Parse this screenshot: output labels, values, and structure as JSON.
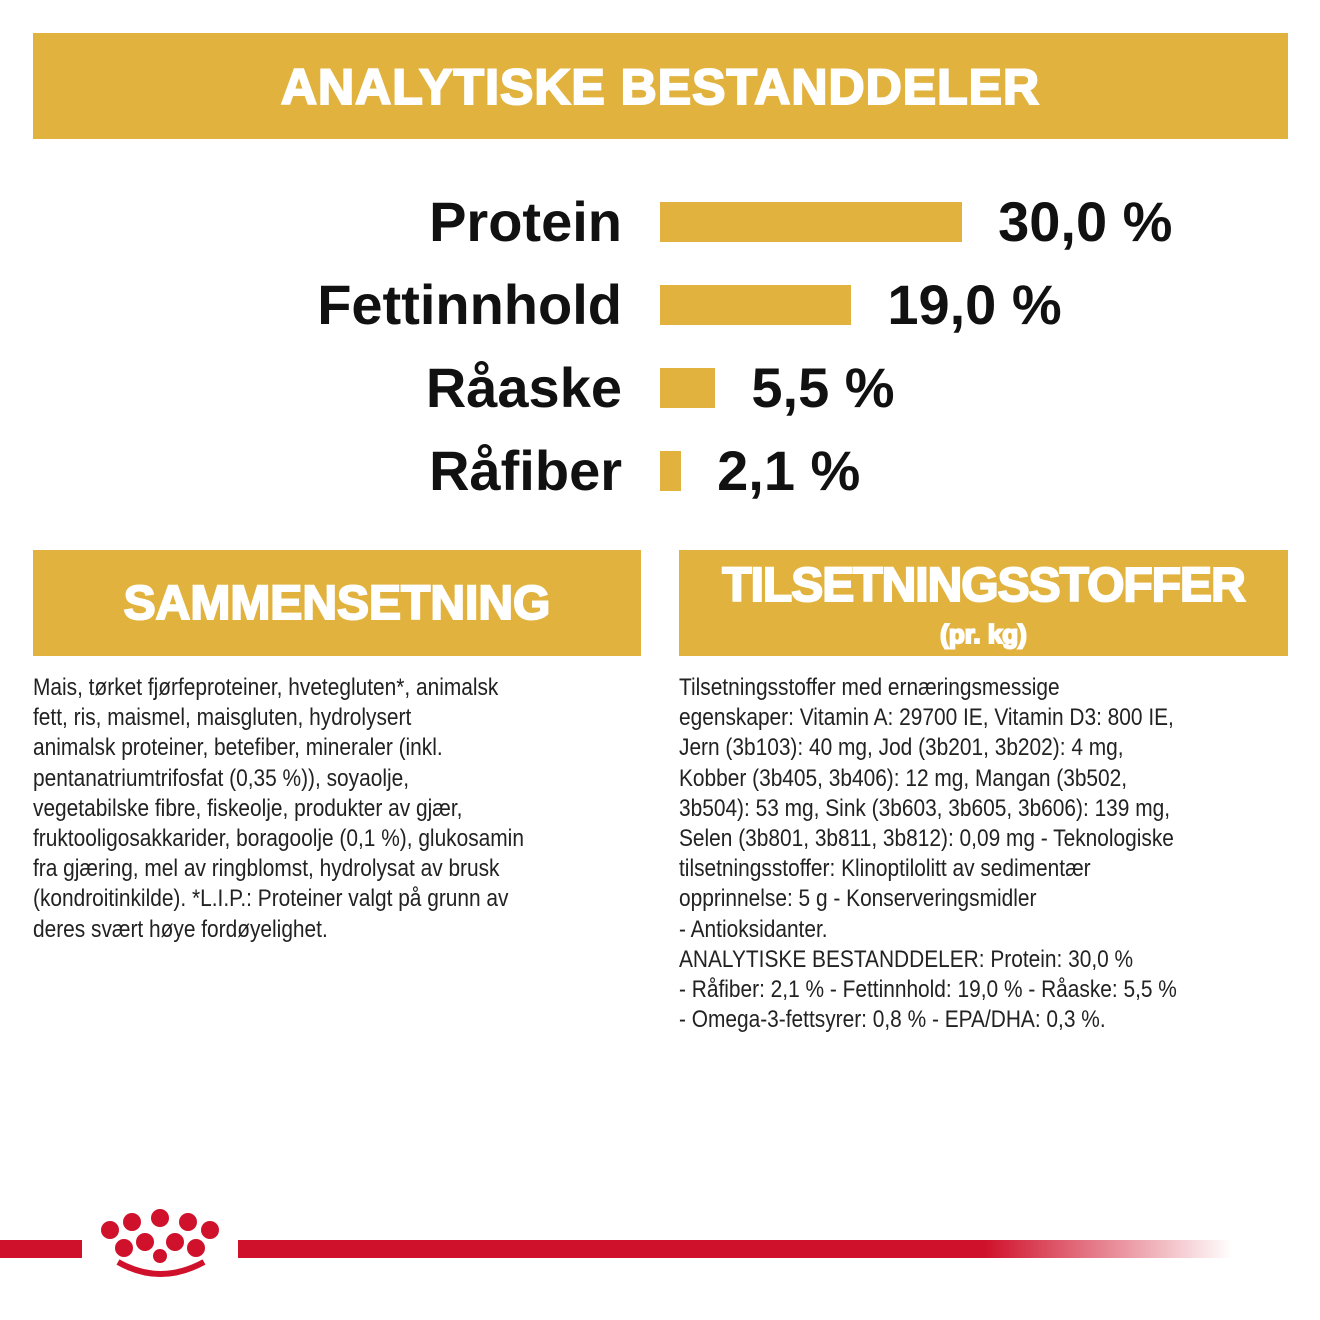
{
  "header": {
    "title": "ANALYTISKE BESTANDDELER"
  },
  "chart_data": {
    "type": "bar",
    "categories": [
      "Protein",
      "Fettinnhold",
      "Råaske",
      "Råfiber"
    ],
    "values": [
      30.0,
      19.0,
      5.5,
      2.1
    ],
    "value_labels": [
      "30,0 %",
      "19,0 %",
      "5,5 %",
      "2,1 %"
    ],
    "color": "#e1b23d"
  },
  "composition": {
    "title": "SAMMENSETNING",
    "lines": [
      "Mais, tørket fjørfeproteiner, hvetegluten*, animalsk",
      "fett, ris, maismel, maisgluten, hydrolysert",
      "animalsk proteiner, betefiber, mineraler (inkl.",
      "pentanatriumtrifosfat (0,35 %)), soyaolje,",
      "vegetabilske fibre, fiskeolje, produkter av gjær,",
      "fruktooligosakkarider, boragoolje (0,1 %), glukosamin",
      "fra gjæring, mel av ringblomst, hydrolysat av brusk",
      "(kondroitinkilde). *L.I.P.: Proteiner valgt på grunn av",
      "deres svært høye fordøyelighet."
    ]
  },
  "additives": {
    "title": "TILSETNINGSSTOFFER",
    "subtitle": "(pr. kg)",
    "lines": [
      "Tilsetningsstoffer med ernæringsmessige",
      "egenskaper: Vitamin A: 29700 IE, Vitamin D3: 800 IE,",
      "Jern (3b103): 40 mg, Jod (3b201, 3b202): 4 mg,",
      "Kobber (3b405, 3b406): 12 mg, Mangan (3b502,",
      "3b504): 53 mg, Sink (3b603, 3b605, 3b606): 139 mg,",
      "Selen (3b801, 3b811, 3b812): 0,09 mg - Teknologiske",
      "tilsetningsstoffer: Klinoptilolitt av sedimentær",
      "opprinnelse: 5 g - Konserveringsmidler",
      "- Antioksidanter.",
      "ANALYTISKE BESTANDDELER: Protein: 30,0 %",
      "- Råfiber: 2,1 % - Fettinnhold: 19,0 % - Råaske: 5,5 %",
      "- Omega-3-fettsyrer: 0,8 % - EPA/DHA: 0,3 %."
    ]
  }
}
